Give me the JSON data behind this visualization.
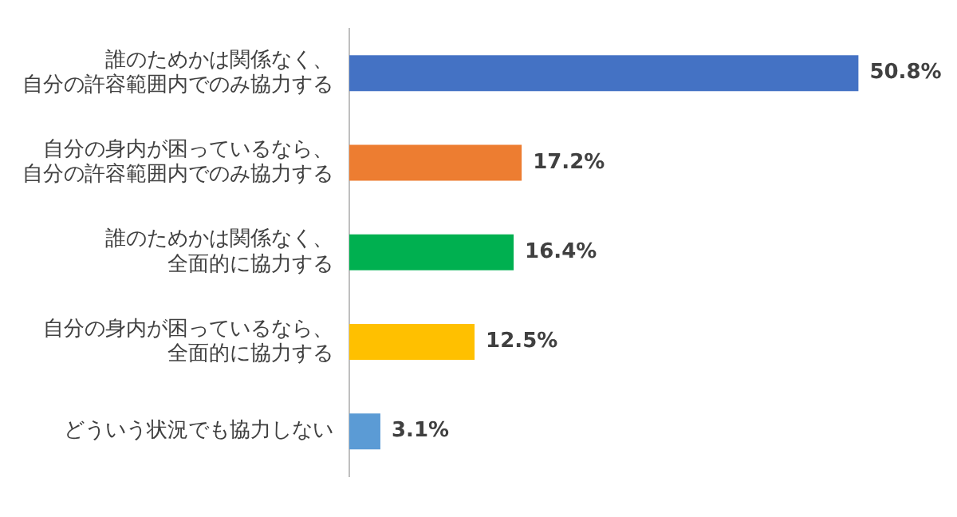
{
  "chart_data": {
    "type": "bar",
    "orientation": "horizontal",
    "categories": [
      "誰のためかは関係なく、自分の許容範囲内でのみ協力する",
      "自分の身内が困っているなら、自分の許容範囲内でのみ協力する",
      "誰のためかは関係なく、全面的に協力する",
      "自分の身内が困っているなら、全面的に協力する",
      "どういう状況でも協力しない"
    ],
    "values": [
      50.8,
      17.2,
      16.4,
      12.5,
      3.1
    ],
    "colors": [
      "#4472c4",
      "#ed7d31",
      "#00b050",
      "#ffc000",
      "#5b9bd5"
    ],
    "value_labels": [
      "50.8%",
      "17.2%",
      "16.4%",
      "12.5%",
      "3.1%"
    ],
    "legend": false
  }
}
